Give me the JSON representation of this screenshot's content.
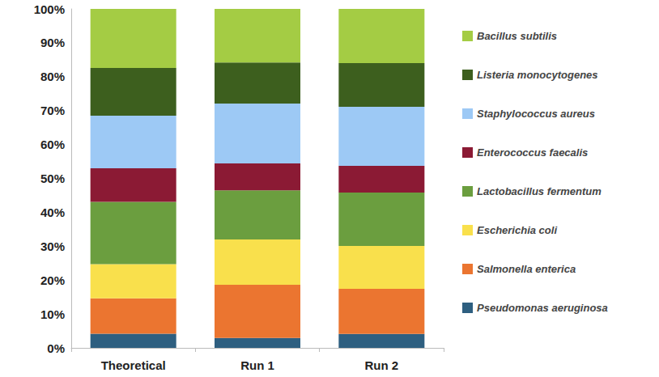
{
  "chart_data": {
    "type": "bar",
    "stacked": true,
    "grid": false,
    "legend": "right",
    "categories": [
      "Theoretical",
      "Run 1",
      "Run 2"
    ],
    "series": [
      {
        "name": "Pseudomonas aeruginosa",
        "color": "#2e5f80",
        "values": [
          4.2,
          2.9,
          4.1
        ]
      },
      {
        "name": "Salmonella enterica",
        "color": "#eb7530",
        "values": [
          10.4,
          15.7,
          13.3
        ]
      },
      {
        "name": "Escherichia coli",
        "color": "#f9e04c",
        "values": [
          10.1,
          13.4,
          12.7
        ]
      },
      {
        "name": "Lactobacillus fermentum",
        "color": "#6b9e3f",
        "values": [
          18.4,
          14.5,
          15.7
        ]
      },
      {
        "name": "Enterococcus faecalis",
        "color": "#8b1a34",
        "values": [
          9.9,
          7.9,
          7.9
        ]
      },
      {
        "name": "Staphylococcus aureus",
        "color": "#9dc9f5",
        "values": [
          15.5,
          17.7,
          17.4
        ]
      },
      {
        "name": "Listeria monocytogenes",
        "color": "#3d5f1e",
        "values": [
          14.1,
          12.1,
          12.9
        ]
      },
      {
        "name": "Bacillus subtilis",
        "color": "#a4cc44",
        "values": [
          17.4,
          15.8,
          16.0
        ]
      }
    ],
    "ylim": [
      0,
      100
    ],
    "yticks": [
      {
        "value": 0,
        "label": "0%"
      },
      {
        "value": 10,
        "label": "10%"
      },
      {
        "value": 20,
        "label": "20%"
      },
      {
        "value": 30,
        "label": "30%"
      },
      {
        "value": 40,
        "label": "40%"
      },
      {
        "value": 50,
        "label": "50%"
      },
      {
        "value": 60,
        "label": "60%"
      },
      {
        "value": 70,
        "label": "70%"
      },
      {
        "value": 80,
        "label": "80%"
      },
      {
        "value": 90,
        "label": "90%"
      },
      {
        "value": 100,
        "label": "100%"
      }
    ]
  }
}
